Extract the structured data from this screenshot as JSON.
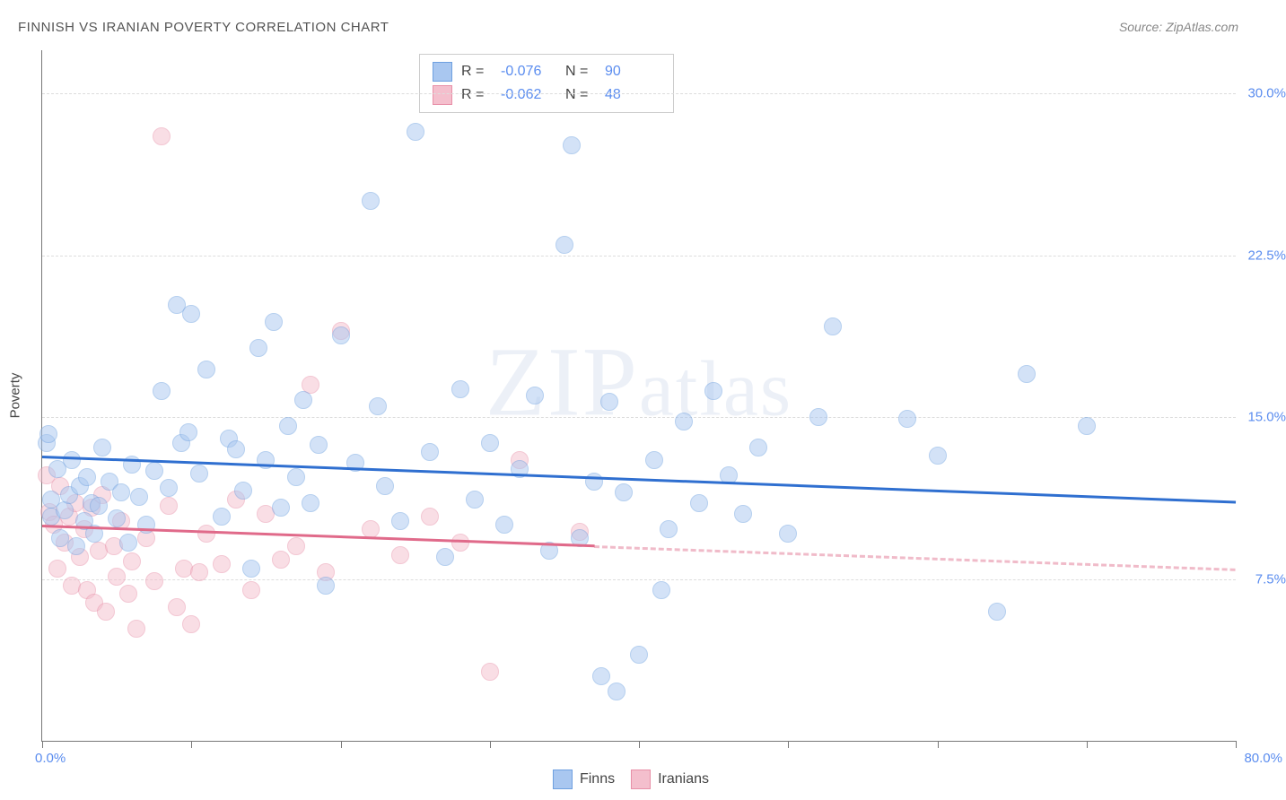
{
  "title": "FINNISH VS IRANIAN POVERTY CORRELATION CHART",
  "source": "Source: ZipAtlas.com",
  "ylabel": "Poverty",
  "watermark": "ZIPatlas",
  "chart": {
    "type": "scatter",
    "xlim": [
      0,
      80
    ],
    "ylim": [
      0,
      32
    ],
    "x_lim_labels": [
      "0.0%",
      "80.0%"
    ],
    "y_ticks": [
      7.5,
      15.0,
      22.5,
      30.0
    ],
    "y_tick_labels": [
      "7.5%",
      "15.0%",
      "22.5%",
      "30.0%"
    ],
    "x_tick_positions": [
      0,
      10,
      20,
      30,
      40,
      50,
      60,
      70,
      80
    ],
    "background_color": "#ffffff",
    "grid_color": "#dddddd",
    "axis_color": "#777777",
    "marker_radius": 9,
    "marker_opacity": 0.5,
    "trend_width": 3,
    "series": {
      "finns": {
        "label": "Finns",
        "fill": "#a9c7f0",
        "stroke": "#6ea0e0",
        "trend_color": "#2f6fd0",
        "trend": {
          "x0": 0,
          "y0": 13.2,
          "x1": 80,
          "y1": 11.1,
          "solid_until_x": 80
        },
        "R": "-0.076",
        "N": "90",
        "points": [
          [
            0.3,
            13.8
          ],
          [
            0.4,
            14.2
          ],
          [
            0.6,
            11.2
          ],
          [
            0.6,
            10.4
          ],
          [
            1.0,
            12.6
          ],
          [
            1.2,
            9.4
          ],
          [
            1.5,
            10.7
          ],
          [
            1.8,
            11.4
          ],
          [
            2.0,
            13.0
          ],
          [
            2.3,
            9.0
          ],
          [
            2.5,
            11.8
          ],
          [
            2.8,
            10.2
          ],
          [
            3.0,
            12.2
          ],
          [
            3.3,
            11.0
          ],
          [
            3.5,
            9.6
          ],
          [
            3.8,
            10.9
          ],
          [
            4.0,
            13.6
          ],
          [
            4.5,
            12.0
          ],
          [
            5.0,
            10.3
          ],
          [
            5.3,
            11.5
          ],
          [
            5.8,
            9.2
          ],
          [
            6.0,
            12.8
          ],
          [
            6.5,
            11.3
          ],
          [
            7.0,
            10.0
          ],
          [
            7.5,
            12.5
          ],
          [
            8.0,
            16.2
          ],
          [
            8.5,
            11.7
          ],
          [
            9.0,
            20.2
          ],
          [
            9.3,
            13.8
          ],
          [
            9.8,
            14.3
          ],
          [
            10.0,
            19.8
          ],
          [
            10.5,
            12.4
          ],
          [
            11.0,
            17.2
          ],
          [
            12.0,
            10.4
          ],
          [
            12.5,
            14.0
          ],
          [
            13.0,
            13.5
          ],
          [
            13.5,
            11.6
          ],
          [
            14.0,
            8.0
          ],
          [
            14.5,
            18.2
          ],
          [
            15.0,
            13.0
          ],
          [
            15.5,
            19.4
          ],
          [
            16.0,
            10.8
          ],
          [
            16.5,
            14.6
          ],
          [
            17.0,
            12.2
          ],
          [
            17.5,
            15.8
          ],
          [
            18.0,
            11.0
          ],
          [
            18.5,
            13.7
          ],
          [
            19.0,
            7.2
          ],
          [
            20.0,
            18.8
          ],
          [
            21.0,
            12.9
          ],
          [
            22.0,
            25.0
          ],
          [
            22.5,
            15.5
          ],
          [
            23.0,
            11.8
          ],
          [
            24.0,
            10.2
          ],
          [
            25.0,
            28.2
          ],
          [
            26.0,
            13.4
          ],
          [
            27.0,
            8.5
          ],
          [
            28.0,
            16.3
          ],
          [
            29.0,
            11.2
          ],
          [
            30.0,
            13.8
          ],
          [
            31.0,
            10.0
          ],
          [
            32.0,
            12.6
          ],
          [
            33.0,
            16.0
          ],
          [
            34.0,
            8.8
          ],
          [
            35.0,
            23.0
          ],
          [
            35.5,
            27.6
          ],
          [
            36.0,
            9.4
          ],
          [
            37.0,
            12.0
          ],
          [
            37.5,
            3.0
          ],
          [
            38.0,
            15.7
          ],
          [
            38.5,
            2.3
          ],
          [
            39.0,
            11.5
          ],
          [
            40.0,
            4.0
          ],
          [
            41.0,
            13.0
          ],
          [
            41.5,
            7.0
          ],
          [
            42.0,
            9.8
          ],
          [
            43.0,
            14.8
          ],
          [
            44.0,
            11.0
          ],
          [
            45.0,
            16.2
          ],
          [
            46.0,
            12.3
          ],
          [
            47.0,
            10.5
          ],
          [
            48.0,
            13.6
          ],
          [
            50.0,
            9.6
          ],
          [
            52.0,
            15.0
          ],
          [
            53.0,
            19.2
          ],
          [
            58.0,
            14.9
          ],
          [
            60.0,
            13.2
          ],
          [
            64.0,
            6.0
          ],
          [
            66.0,
            17.0
          ],
          [
            70.0,
            14.6
          ]
        ]
      },
      "iranians": {
        "label": "Iranians",
        "fill": "#f4bfcd",
        "stroke": "#e890a8",
        "trend_color": "#e06a8a",
        "trend": {
          "x0": 0,
          "y0": 10.0,
          "x1": 80,
          "y1": 8.0,
          "solid_until_x": 37
        },
        "R": "-0.062",
        "N": "48",
        "points": [
          [
            0.3,
            12.3
          ],
          [
            0.5,
            10.6
          ],
          [
            0.8,
            10.0
          ],
          [
            1.0,
            8.0
          ],
          [
            1.2,
            11.8
          ],
          [
            1.5,
            9.2
          ],
          [
            1.8,
            10.4
          ],
          [
            2.0,
            7.2
          ],
          [
            2.2,
            11.0
          ],
          [
            2.5,
            8.5
          ],
          [
            2.8,
            9.8
          ],
          [
            3.0,
            7.0
          ],
          [
            3.3,
            10.8
          ],
          [
            3.5,
            6.4
          ],
          [
            3.8,
            8.8
          ],
          [
            4.0,
            11.4
          ],
          [
            4.3,
            6.0
          ],
          [
            4.8,
            9.0
          ],
          [
            5.0,
            7.6
          ],
          [
            5.3,
            10.2
          ],
          [
            5.8,
            6.8
          ],
          [
            6.0,
            8.3
          ],
          [
            6.3,
            5.2
          ],
          [
            7.0,
            9.4
          ],
          [
            7.5,
            7.4
          ],
          [
            8.0,
            28.0
          ],
          [
            8.5,
            10.9
          ],
          [
            9.0,
            6.2
          ],
          [
            9.5,
            8.0
          ],
          [
            10.0,
            5.4
          ],
          [
            10.5,
            7.8
          ],
          [
            11.0,
            9.6
          ],
          [
            12.0,
            8.2
          ],
          [
            13.0,
            11.2
          ],
          [
            14.0,
            7.0
          ],
          [
            15.0,
            10.5
          ],
          [
            16.0,
            8.4
          ],
          [
            17.0,
            9.0
          ],
          [
            18.0,
            16.5
          ],
          [
            19.0,
            7.8
          ],
          [
            20.0,
            19.0
          ],
          [
            22.0,
            9.8
          ],
          [
            24.0,
            8.6
          ],
          [
            26.0,
            10.4
          ],
          [
            28.0,
            9.2
          ],
          [
            30.0,
            3.2
          ],
          [
            32.0,
            13.0
          ],
          [
            36.0,
            9.7
          ]
        ]
      }
    }
  },
  "legend_top": [
    {
      "series": "finns",
      "R_label": "R =",
      "N_label": "N ="
    },
    {
      "series": "iranians",
      "R_label": "R =",
      "N_label": "N ="
    }
  ],
  "legend_bottom": [
    {
      "series": "finns"
    },
    {
      "series": "iranians"
    }
  ]
}
